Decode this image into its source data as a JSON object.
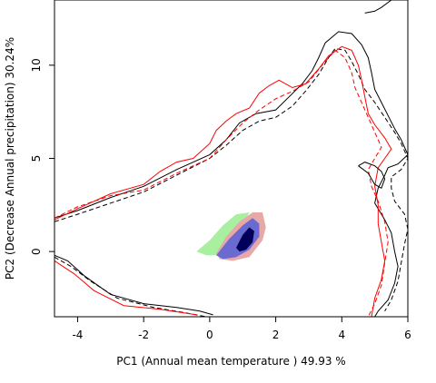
{
  "chart_data": {
    "type": "contour",
    "xlabel": "PC1 (Annual mean temperature ) 49.93 %",
    "ylabel": "PC2 (Decrease Annual precipitation) 30.24%",
    "xlim": [
      -4.7,
      6.0
    ],
    "ylim": [
      -3.5,
      13.5
    ],
    "x_ticks": [
      -4,
      -2,
      0,
      2,
      4,
      6
    ],
    "y_ticks": [
      0,
      5,
      10
    ],
    "colors": {
      "black": "#000000",
      "red": "#ff0000",
      "green": "#a8f0a0",
      "blue": "#6a6ad0",
      "dark_blue": "#00005a",
      "pink": "#e8a8a8"
    },
    "series": [
      {
        "color": "black",
        "dash": "solid",
        "points": [
          [
            -4.7,
            -0.2
          ],
          [
            -4.3,
            -0.5
          ],
          [
            -3.8,
            -1.3
          ],
          [
            -3.0,
            -2.3
          ],
          [
            -2.0,
            -2.8
          ],
          [
            -1.0,
            -3.0
          ],
          [
            -0.3,
            -3.2
          ],
          [
            0.1,
            -3.4
          ]
        ]
      },
      {
        "color": "black",
        "dash": "dashed",
        "points": [
          [
            -4.7,
            -0.3
          ],
          [
            -4.2,
            -0.8
          ],
          [
            -3.6,
            -1.6
          ],
          [
            -2.8,
            -2.5
          ],
          [
            -1.7,
            -3.0
          ],
          [
            -0.7,
            -3.3
          ],
          [
            -0.1,
            -3.5
          ]
        ]
      },
      {
        "color": "red",
        "dash": "solid",
        "points": [
          [
            -4.7,
            -0.5
          ],
          [
            -4.1,
            -1.2
          ],
          [
            -3.5,
            -2.1
          ],
          [
            -2.6,
            -2.9
          ],
          [
            -1.5,
            -3.1
          ],
          [
            -0.4,
            -3.4
          ]
        ]
      },
      {
        "color": "black",
        "dash": "solid",
        "points": [
          [
            -4.7,
            1.8
          ],
          [
            -4.0,
            2.2
          ],
          [
            -3.0,
            2.9
          ],
          [
            -2.0,
            3.5
          ],
          [
            -1.0,
            4.4
          ],
          [
            0.0,
            5.2
          ],
          [
            0.5,
            6.0
          ],
          [
            0.9,
            6.9
          ],
          [
            1.4,
            7.4
          ],
          [
            2.0,
            7.6
          ],
          [
            2.4,
            8.3
          ],
          [
            2.8,
            9.0
          ],
          [
            3.1,
            9.7
          ],
          [
            3.3,
            10.4
          ],
          [
            3.5,
            11.2
          ],
          [
            3.9,
            11.8
          ],
          [
            4.3,
            11.7
          ],
          [
            4.6,
            11.1
          ],
          [
            4.8,
            10.4
          ],
          [
            4.9,
            9.6
          ],
          [
            5.0,
            8.7
          ],
          [
            5.2,
            8.0
          ],
          [
            5.4,
            7.3
          ],
          [
            5.6,
            6.6
          ],
          [
            5.8,
            6.0
          ],
          [
            6.0,
            5.2
          ],
          [
            5.7,
            4.7
          ],
          [
            5.4,
            4.5
          ],
          [
            5.3,
            4.1
          ],
          [
            5.1,
            3.4
          ],
          [
            5.0,
            2.6
          ],
          [
            5.3,
            1.7
          ],
          [
            5.5,
            1.0
          ],
          [
            5.6,
            0.0
          ],
          [
            5.7,
            -0.8
          ],
          [
            5.6,
            -1.7
          ],
          [
            5.4,
            -2.6
          ],
          [
            5.1,
            -3.2
          ],
          [
            5.0,
            -3.5
          ]
        ]
      },
      {
        "color": "black",
        "dash": "dashed",
        "points": [
          [
            -4.7,
            1.6
          ],
          [
            -4.0,
            2.0
          ],
          [
            -3.0,
            2.6
          ],
          [
            -2.0,
            3.2
          ],
          [
            -1.0,
            4.1
          ],
          [
            0.0,
            5.0
          ],
          [
            0.5,
            5.7
          ],
          [
            1.0,
            6.5
          ],
          [
            1.5,
            7.0
          ],
          [
            2.0,
            7.2
          ],
          [
            2.5,
            7.8
          ],
          [
            2.9,
            8.6
          ],
          [
            3.3,
            9.5
          ],
          [
            3.6,
            10.4
          ],
          [
            3.8,
            10.9
          ],
          [
            4.1,
            10.8
          ],
          [
            4.3,
            10.2
          ],
          [
            4.5,
            9.5
          ],
          [
            4.7,
            8.7
          ],
          [
            5.0,
            8.0
          ],
          [
            5.3,
            7.2
          ],
          [
            5.6,
            6.4
          ],
          [
            5.8,
            5.8
          ],
          [
            6.0,
            5.0
          ],
          [
            5.8,
            4.4
          ],
          [
            5.5,
            4.0
          ],
          [
            5.5,
            3.4
          ],
          [
            5.6,
            2.7
          ],
          [
            5.9,
            2.0
          ],
          [
            6.0,
            1.2
          ],
          [
            5.9,
            0.4
          ],
          [
            5.8,
            -0.6
          ],
          [
            5.7,
            -1.6
          ],
          [
            5.5,
            -2.6
          ],
          [
            5.3,
            -3.2
          ]
        ]
      },
      {
        "color": "red",
        "dash": "solid",
        "points": [
          [
            -4.7,
            1.7
          ],
          [
            -4.0,
            2.3
          ],
          [
            -3.0,
            3.1
          ],
          [
            -2.0,
            3.6
          ],
          [
            -1.5,
            4.3
          ],
          [
            -1.0,
            4.8
          ],
          [
            -0.5,
            5.0
          ],
          [
            0.0,
            5.8
          ],
          [
            0.2,
            6.5
          ],
          [
            0.5,
            7.0
          ],
          [
            0.8,
            7.4
          ],
          [
            1.2,
            7.7
          ],
          [
            1.5,
            8.5
          ],
          [
            1.8,
            8.9
          ],
          [
            2.1,
            9.2
          ],
          [
            2.5,
            8.8
          ],
          [
            2.9,
            9.0
          ],
          [
            3.3,
            9.8
          ],
          [
            3.6,
            10.5
          ],
          [
            4.0,
            11.0
          ],
          [
            4.3,
            10.8
          ],
          [
            4.5,
            10.0
          ],
          [
            4.6,
            9.2
          ],
          [
            4.7,
            8.3
          ],
          [
            4.8,
            7.4
          ],
          [
            5.0,
            6.8
          ],
          [
            5.3,
            6.1
          ],
          [
            5.5,
            5.5
          ],
          [
            5.3,
            5.0
          ],
          [
            5.1,
            4.5
          ],
          [
            5.0,
            3.5
          ],
          [
            5.1,
            2.5
          ],
          [
            5.1,
            1.5
          ],
          [
            5.2,
            0.5
          ],
          [
            5.3,
            -0.5
          ],
          [
            5.2,
            -1.5
          ],
          [
            5.0,
            -2.5
          ],
          [
            4.9,
            -3.5
          ]
        ]
      },
      {
        "color": "red",
        "dash": "dashed",
        "points": [
          [
            -4.7,
            1.8
          ],
          [
            -4.0,
            2.4
          ],
          [
            -3.0,
            3.0
          ],
          [
            -2.0,
            3.3
          ],
          [
            -1.0,
            4.2
          ],
          [
            0.0,
            5.0
          ],
          [
            0.5,
            6.0
          ],
          [
            1.0,
            6.9
          ],
          [
            1.5,
            7.6
          ],
          [
            2.0,
            8.2
          ],
          [
            2.5,
            8.6
          ],
          [
            3.0,
            9.1
          ],
          [
            3.4,
            10.0
          ],
          [
            3.8,
            10.8
          ],
          [
            4.1,
            10.4
          ],
          [
            4.3,
            9.6
          ],
          [
            4.4,
            8.8
          ],
          [
            4.6,
            8.0
          ],
          [
            4.8,
            7.2
          ],
          [
            5.0,
            6.4
          ],
          [
            5.2,
            5.6
          ],
          [
            5.0,
            5.0
          ],
          [
            4.8,
            4.4
          ],
          [
            4.9,
            3.5
          ],
          [
            5.1,
            2.7
          ],
          [
            5.3,
            1.6
          ],
          [
            5.4,
            0.5
          ],
          [
            5.3,
            -0.6
          ],
          [
            5.2,
            -1.8
          ],
          [
            5.0,
            -2.8
          ],
          [
            4.8,
            -3.5
          ]
        ]
      },
      {
        "color": "black",
        "dash": "solid",
        "points": [
          [
            4.7,
            12.8
          ],
          [
            5.0,
            12.9
          ],
          [
            5.2,
            13.1
          ],
          [
            5.5,
            13.5
          ],
          [
            5.8,
            13.5
          ],
          [
            6.0,
            13.5
          ]
        ]
      },
      {
        "color": "black",
        "dash": "solid",
        "points": [
          [
            4.5,
            4.6
          ],
          [
            4.8,
            4.2
          ],
          [
            5.0,
            3.6
          ],
          [
            5.2,
            3.4
          ],
          [
            5.3,
            3.9
          ],
          [
            5.2,
            4.3
          ],
          [
            5.0,
            4.6
          ],
          [
            4.7,
            4.8
          ],
          [
            4.5,
            4.6
          ]
        ]
      }
    ],
    "density": [
      {
        "color": "green",
        "points": [
          [
            -0.4,
            0.0
          ],
          [
            0.0,
            0.6
          ],
          [
            0.4,
            1.4
          ],
          [
            0.8,
            2.0
          ],
          [
            1.2,
            2.1
          ],
          [
            1.0,
            1.4
          ],
          [
            0.8,
            0.7
          ],
          [
            0.6,
            0.0
          ],
          [
            0.3,
            -0.2
          ],
          [
            -0.1,
            -0.2
          ]
        ]
      },
      {
        "color": "pink",
        "points": [
          [
            0.2,
            -0.1
          ],
          [
            0.5,
            0.8
          ],
          [
            0.9,
            1.6
          ],
          [
            1.3,
            2.1
          ],
          [
            1.6,
            2.1
          ],
          [
            1.7,
            1.3
          ],
          [
            1.6,
            0.6
          ],
          [
            1.2,
            -0.3
          ],
          [
            0.7,
            -0.5
          ],
          [
            0.3,
            -0.4
          ]
        ]
      },
      {
        "color": "blue",
        "points": [
          [
            0.2,
            -0.2
          ],
          [
            0.6,
            0.7
          ],
          [
            1.0,
            1.4
          ],
          [
            1.3,
            1.8
          ],
          [
            1.5,
            1.5
          ],
          [
            1.5,
            0.8
          ],
          [
            1.2,
            0.1
          ],
          [
            0.8,
            -0.3
          ],
          [
            0.4,
            -0.4
          ]
        ]
      },
      {
        "color": "dark_blue",
        "points": [
          [
            0.8,
            0.2
          ],
          [
            1.0,
            0.9
          ],
          [
            1.2,
            1.3
          ],
          [
            1.35,
            1.1
          ],
          [
            1.3,
            0.5
          ],
          [
            1.1,
            0.1
          ],
          [
            0.9,
            0.0
          ]
        ]
      }
    ]
  }
}
